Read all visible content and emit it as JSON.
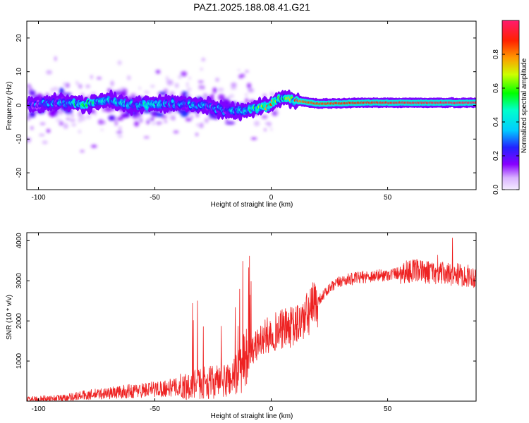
{
  "title": "PAZ1.2025.188.08.41.G21",
  "chart_data": [
    {
      "type": "heatmap",
      "xlabel": "Height of straight line (km)",
      "ylabel": "Frequency (Hz)",
      "xlim": [
        -105,
        88
      ],
      "ylim": [
        -25,
        25
      ],
      "x_ticks": [
        -100,
        -50,
        0,
        50
      ],
      "y_ticks": [
        -20,
        -10,
        0,
        10,
        20
      ],
      "colorbar": {
        "label": "Normalized spectral amplitude",
        "range": [
          0,
          1
        ],
        "ticks": [
          0.0,
          0.2,
          0.4,
          0.6,
          0.8
        ],
        "colormap": "rainbow (white-purple-blue-cyan-green-yellow-orange-red-pink)"
      },
      "ridge": [
        {
          "x": -100,
          "f": 0.3,
          "amp": 0.3
        },
        {
          "x": -90,
          "f": 1.0,
          "amp": 0.35
        },
        {
          "x": -80,
          "f": 0.3,
          "amp": 0.5
        },
        {
          "x": -70,
          "f": 1.5,
          "amp": 0.4
        },
        {
          "x": -60,
          "f": 0.0,
          "amp": 0.4
        },
        {
          "x": -50,
          "f": 0.5,
          "amp": 0.4
        },
        {
          "x": -40,
          "f": 0.5,
          "amp": 0.35
        },
        {
          "x": -30,
          "f": 0.0,
          "amp": 0.35
        },
        {
          "x": -20,
          "f": -1.5,
          "amp": 0.3
        },
        {
          "x": -10,
          "f": -1.5,
          "amp": 0.45
        },
        {
          "x": 0,
          "f": 0.5,
          "amp": 0.7
        },
        {
          "x": 5,
          "f": 2.5,
          "amp": 0.5
        },
        {
          "x": 10,
          "f": 1.5,
          "amp": 0.75
        },
        {
          "x": 15,
          "f": 1.0,
          "amp": 0.85
        },
        {
          "x": 20,
          "f": 0.5,
          "amp": 0.85
        },
        {
          "x": 40,
          "f": 0.8,
          "amp": 0.9
        },
        {
          "x": 60,
          "f": 0.8,
          "amp": 0.95
        },
        {
          "x": 88,
          "f": 0.8,
          "amp": 0.98
        }
      ]
    },
    {
      "type": "line",
      "xlabel": "Height of straight line (km)",
      "ylabel": "SNR (10 * v/v)",
      "xlim": [
        -105,
        88
      ],
      "ylim": [
        0,
        4200
      ],
      "x_ticks": [
        -100,
        -50,
        0,
        50
      ],
      "y_ticks": [
        1000,
        2000,
        3000,
        4000
      ],
      "color": "#ee2222",
      "trend": [
        {
          "x": -105,
          "y": 50
        },
        {
          "x": -90,
          "y": 80
        },
        {
          "x": -80,
          "y": 150
        },
        {
          "x": -60,
          "y": 250
        },
        {
          "x": -40,
          "y": 350
        },
        {
          "x": -30,
          "y": 450
        },
        {
          "x": -20,
          "y": 500
        },
        {
          "x": -15,
          "y": 650
        },
        {
          "x": -10,
          "y": 1100
        },
        {
          "x": -5,
          "y": 1500
        },
        {
          "x": 0,
          "y": 1700
        },
        {
          "x": 5,
          "y": 1800
        },
        {
          "x": 10,
          "y": 1850
        },
        {
          "x": 15,
          "y": 2100
        },
        {
          "x": 20,
          "y": 2500
        },
        {
          "x": 25,
          "y": 2800
        },
        {
          "x": 30,
          "y": 3000
        },
        {
          "x": 40,
          "y": 3100
        },
        {
          "x": 50,
          "y": 3150
        },
        {
          "x": 60,
          "y": 3250
        },
        {
          "x": 70,
          "y": 3200
        },
        {
          "x": 80,
          "y": 3150
        },
        {
          "x": 88,
          "y": 3100
        }
      ]
    }
  ]
}
